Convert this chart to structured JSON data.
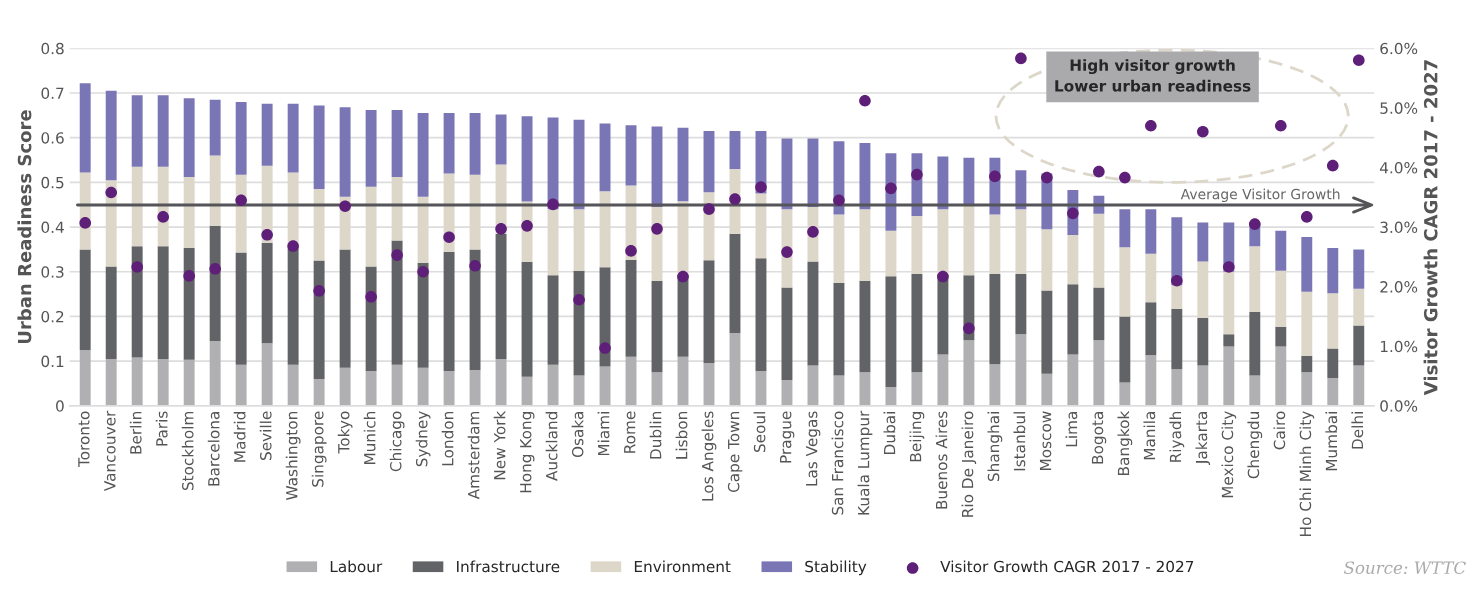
{
  "chart_data": {
    "type": "bar",
    "stacked": true,
    "categories": [
      "Toronto",
      "Vancouver",
      "Berlin",
      "Paris",
      "Stockholm",
      "Barcelona",
      "Madrid",
      "Seville",
      "Washington",
      "Singapore",
      "Tokyo",
      "Munich",
      "Chicago",
      "Sydney",
      "London",
      "Amsterdam",
      "New York",
      "Hong Kong",
      "Auckland",
      "Osaka",
      "Miami",
      "Rome",
      "Dublin",
      "Lisbon",
      "Los Angeles",
      "Cape Town",
      "Seoul",
      "Prague",
      "Las Vegas",
      "San Francisco",
      "Kuala Lumpur",
      "Dubai",
      "Beijing",
      "Buenos Aires",
      "Rio De Janeiro",
      "Shanghai",
      "Istanbul",
      "Moscow",
      "Lima",
      "Bogota",
      "Bangkok",
      "Manila",
      "Riyadh",
      "Jakarta",
      "Mexico City",
      "Chengdu",
      "Cairo",
      "Ho Chi Minh City",
      "Mumbai",
      "Delhi"
    ],
    "series": [
      {
        "name": "Labour",
        "color": "#b0b0b2",
        "values": [
          0.125,
          0.105,
          0.108,
          0.105,
          0.103,
          0.145,
          0.092,
          0.14,
          0.092,
          0.06,
          0.085,
          0.078,
          0.092,
          0.085,
          0.078,
          0.08,
          0.105,
          0.065,
          0.092,
          0.068,
          0.088,
          0.11,
          0.075,
          0.11,
          0.096,
          0.163,
          0.078,
          0.058,
          0.09,
          0.068,
          0.075,
          0.042,
          0.075,
          0.115,
          0.147,
          0.093,
          0.16,
          0.072,
          0.115,
          0.147,
          0.052,
          0.113,
          0.082,
          0.09,
          0.133,
          0.068,
          0.133,
          0.075,
          0.062,
          0.09
        ]
      },
      {
        "name": "Infrastructure",
        "color": "#626366",
        "values": [
          0.225,
          0.207,
          0.249,
          0.252,
          0.25,
          0.258,
          0.251,
          0.225,
          0.26,
          0.265,
          0.265,
          0.234,
          0.278,
          0.235,
          0.267,
          0.27,
          0.28,
          0.257,
          0.2,
          0.234,
          0.222,
          0.217,
          0.205,
          0.183,
          0.23,
          0.222,
          0.252,
          0.207,
          0.233,
          0.207,
          0.205,
          0.248,
          0.22,
          0.18,
          0.145,
          0.202,
          0.135,
          0.186,
          0.157,
          0.118,
          0.148,
          0.119,
          0.135,
          0.107,
          0.027,
          0.142,
          0.044,
          0.037,
          0.066,
          0.09
        ]
      },
      {
        "name": "Environment",
        "color": "#ddd7ca",
        "values": [
          0.172,
          0.193,
          0.178,
          0.178,
          0.159,
          0.157,
          0.174,
          0.172,
          0.17,
          0.16,
          0.118,
          0.178,
          0.142,
          0.148,
          0.175,
          0.167,
          0.155,
          0.135,
          0.148,
          0.138,
          0.17,
          0.166,
          0.165,
          0.165,
          0.152,
          0.145,
          0.145,
          0.175,
          0.122,
          0.153,
          0.16,
          0.102,
          0.13,
          0.145,
          0.158,
          0.133,
          0.145,
          0.137,
          0.11,
          0.165,
          0.155,
          0.108,
          0.053,
          0.126,
          0.14,
          0.147,
          0.125,
          0.143,
          0.124,
          0.082
        ]
      },
      {
        "name": "Stability",
        "color": "#7a76b6",
        "values": [
          0.2,
          0.2,
          0.16,
          0.16,
          0.176,
          0.125,
          0.163,
          0.139,
          0.154,
          0.187,
          0.2,
          0.172,
          0.15,
          0.187,
          0.135,
          0.138,
          0.112,
          0.191,
          0.205,
          0.2,
          0.152,
          0.135,
          0.18,
          0.164,
          0.137,
          0.085,
          0.14,
          0.158,
          0.153,
          0.164,
          0.148,
          0.173,
          0.14,
          0.118,
          0.105,
          0.127,
          0.087,
          0.125,
          0.101,
          0.04,
          0.085,
          0.1,
          0.152,
          0.087,
          0.11,
          0.053,
          0.09,
          0.123,
          0.101,
          0.088
        ]
      },
      {
        "name": "Visitor Growth CAGR 2017 - 2027",
        "type": "scatter",
        "axis": "y2",
        "marker": "circle",
        "color": "#5e1f78",
        "values": [
          3.07,
          3.58,
          2.33,
          3.17,
          2.18,
          2.3,
          3.45,
          2.87,
          2.68,
          1.93,
          3.35,
          1.83,
          2.53,
          2.25,
          2.83,
          2.35,
          2.97,
          3.02,
          3.38,
          1.78,
          0.97,
          2.6,
          2.97,
          2.17,
          3.3,
          3.47,
          3.67,
          2.58,
          2.92,
          3.45,
          5.12,
          3.65,
          3.88,
          2.17,
          1.3,
          3.85,
          5.83,
          3.83,
          3.23,
          3.93,
          3.83,
          4.7,
          2.1,
          4.6,
          2.33,
          3.05,
          4.7,
          3.17,
          4.03,
          5.8
        ]
      }
    ],
    "ylabel": "Urban Readiness Score",
    "y2label": "Visitor Growth CAGR 2017 - 2027",
    "ylim": [
      0,
      0.8
    ],
    "yticks": [
      0,
      0.1,
      0.2,
      0.3,
      0.4,
      0.5,
      0.6,
      0.7,
      0.8
    ],
    "y2lim": [
      0,
      6
    ],
    "y2ticks": [
      {
        "value": 0,
        "label": "0.0%"
      },
      {
        "value": 1,
        "label": "1.0%"
      },
      {
        "value": 2,
        "label": "2.0%"
      },
      {
        "value": 3,
        "label": "3.0%"
      },
      {
        "value": 4,
        "label": "4.0%"
      },
      {
        "value": 5,
        "label": "5.0%"
      },
      {
        "value": 6,
        "label": "6.0%"
      }
    ],
    "ref_lines": [
      {
        "axis": "y2",
        "value": 3.37,
        "label": "Average Visitor Growth",
        "color": "#555559"
      }
    ],
    "annotations": [
      "High visitor growth\nLower urban readiness",
      "Source: WTTC"
    ],
    "grid": "y",
    "legend": "bottom"
  }
}
